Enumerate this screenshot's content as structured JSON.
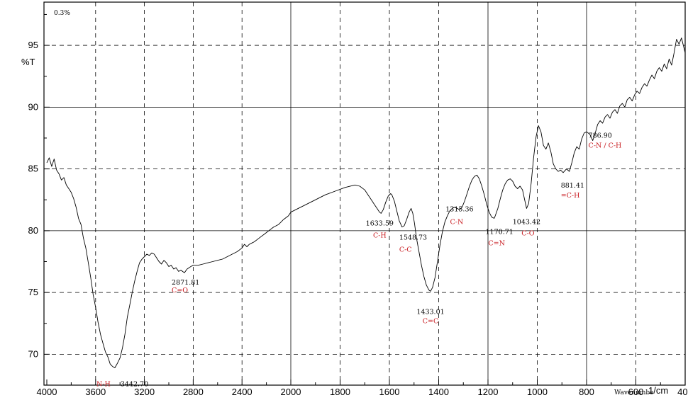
{
  "chart_data": {
    "type": "line",
    "title": "",
    "corner_note": "0.3%",
    "ylabel": "%T",
    "xlabel": "Wavenumbe",
    "x_unit": "1/cm",
    "xlim": [
      4000,
      400
    ],
    "ylim": [
      67.5,
      98.5
    ],
    "x_ticks": [
      4000,
      3600,
      3200,
      2800,
      2400,
      2000,
      1800,
      1600,
      1400,
      1200,
      1000,
      800,
      600,
      400
    ],
    "y_ticks": [
      70,
      75,
      80,
      85,
      90,
      95
    ],
    "x_tick_labels": [
      "4000",
      "3600",
      "3200",
      "2800",
      "2400",
      "2000",
      "1800",
      "1600",
      "1400",
      "1200",
      "1000",
      "800",
      "600",
      "400"
    ],
    "y_tick_labels": [
      "70",
      "75",
      "80",
      "85",
      "90",
      "95"
    ],
    "grid": true,
    "series": [
      {
        "x": [
          4000,
          3980,
          3960,
          3940,
          3920,
          3900,
          3880,
          3860,
          3840,
          3820,
          3800,
          3780,
          3760,
          3740,
          3720,
          3700,
          3680,
          3660,
          3640,
          3620,
          3600,
          3580,
          3560,
          3540,
          3520,
          3500,
          3480,
          3460,
          3442.7,
          3420,
          3400,
          3380,
          3360,
          3340,
          3320,
          3300,
          3280,
          3260,
          3240,
          3220,
          3200,
          3180,
          3160,
          3140,
          3120,
          3100,
          3080,
          3060,
          3040,
          3020,
          3000,
          2980,
          2960,
          2940,
          2920,
          2900,
          2871.81,
          2850,
          2820,
          2800,
          2760,
          2720,
          2680,
          2640,
          2600,
          2560,
          2520,
          2480,
          2440,
          2400,
          2380,
          2360,
          2340,
          2320,
          2300,
          2260,
          2220,
          2180,
          2140,
          2100,
          2060,
          2020,
          2000,
          1980,
          1940,
          1900,
          1860,
          1820,
          1780,
          1740,
          1720,
          1700,
          1690,
          1680,
          1670,
          1660,
          1650,
          1640,
          1633.59,
          1625,
          1615,
          1605,
          1595,
          1590,
          1580,
          1570,
          1560,
          1548.73,
          1540,
          1530,
          1520,
          1512,
          1505,
          1498,
          1490,
          1480,
          1470,
          1460,
          1450,
          1440,
          1433.01,
          1425,
          1415,
          1405,
          1395,
          1385,
          1375,
          1365,
          1355,
          1345,
          1335,
          1325,
          1315.36,
          1305,
          1295,
          1285,
          1275,
          1265,
          1255,
          1245,
          1235,
          1225,
          1215,
          1205,
          1195,
          1185,
          1175,
          1170.71,
          1160,
          1150,
          1140,
          1130,
          1120,
          1110,
          1100,
          1090,
          1080,
          1070,
          1060,
          1050,
          1043.42,
          1035,
          1025,
          1015,
          1005,
          995,
          985,
          975,
          965,
          955,
          945,
          935,
          925,
          915,
          905,
          895,
          881.41,
          870,
          860,
          850,
          840,
          830,
          820,
          810,
          800,
          786.9,
          775,
          765,
          755,
          745,
          735,
          725,
          715,
          705,
          695,
          685,
          675,
          665,
          655,
          645,
          635,
          625,
          615,
          605,
          595,
          585,
          575,
          565,
          555,
          545,
          535,
          525,
          515,
          505,
          495,
          485,
          475,
          465,
          455,
          445,
          435,
          425,
          415,
          405,
          400
        ],
        "y": [
          85.5,
          85.9,
          85.2,
          85.8,
          84.9,
          84.6,
          84.1,
          84.3,
          83.7,
          83.4,
          83.1,
          82.6,
          81.9,
          81.0,
          80.5,
          79.4,
          78.6,
          77.4,
          76.2,
          74.8,
          73.8,
          72.6,
          71.6,
          70.9,
          70.2,
          69.8,
          69.2,
          69.0,
          68.9,
          69.3,
          69.7,
          70.5,
          71.6,
          73.0,
          74.0,
          75.0,
          75.9,
          76.7,
          77.4,
          77.7,
          77.9,
          78.1,
          78.0,
          78.2,
          78.1,
          77.8,
          77.5,
          77.3,
          77.6,
          77.4,
          77.1,
          77.2,
          76.9,
          77.0,
          76.7,
          76.8,
          76.6,
          76.9,
          77.1,
          77.2,
          77.2,
          77.3,
          77.4,
          77.5,
          77.6,
          77.7,
          77.9,
          78.1,
          78.3,
          78.6,
          78.9,
          78.7,
          78.9,
          79.0,
          79.1,
          79.4,
          79.7,
          80.0,
          80.3,
          80.5,
          80.9,
          81.2,
          81.5,
          81.7,
          82.1,
          82.5,
          82.9,
          83.2,
          83.5,
          83.7,
          83.6,
          83.3,
          83.0,
          82.7,
          82.4,
          82.1,
          81.8,
          81.5,
          81.4,
          81.7,
          82.3,
          82.8,
          83.0,
          82.9,
          82.4,
          81.6,
          80.8,
          80.3,
          80.4,
          80.9,
          81.5,
          81.8,
          81.4,
          80.6,
          79.4,
          78.3,
          77.2,
          76.3,
          75.6,
          75.2,
          75.1,
          75.4,
          76.2,
          77.5,
          78.8,
          79.9,
          80.7,
          81.2,
          81.6,
          81.8,
          81.9,
          81.8,
          81.7,
          81.9,
          82.4,
          83.0,
          83.6,
          84.1,
          84.4,
          84.5,
          84.2,
          83.6,
          82.9,
          82.1,
          81.5,
          81.1,
          81.0,
          81.2,
          81.8,
          82.6,
          83.3,
          83.8,
          84.1,
          84.2,
          84.0,
          83.6,
          83.4,
          83.6,
          83.3,
          82.4,
          81.8,
          82.2,
          83.8,
          85.9,
          87.6,
          88.5,
          88.0,
          86.9,
          86.6,
          87.1,
          86.4,
          85.4,
          85.0,
          84.8,
          84.9,
          84.7,
          85.0,
          84.8,
          85.5,
          86.3,
          86.8,
          86.6,
          87.4,
          87.9,
          88.0,
          87.8,
          87.3,
          87.9,
          88.6,
          88.9,
          88.7,
          89.2,
          89.4,
          89.1,
          89.6,
          89.8,
          89.5,
          90.1,
          90.3,
          90.0,
          90.6,
          90.8,
          90.5,
          91.0,
          91.3,
          91.1,
          91.6,
          91.9,
          91.7,
          92.2,
          92.6,
          92.3,
          92.9,
          93.2,
          92.9,
          93.5,
          93.1,
          93.9,
          93.4,
          94.4,
          95.5,
          95.1,
          95.6,
          94.8,
          94.4
        ]
      }
    ],
    "annotations": [
      {
        "x": 3442.7,
        "y": 68.9,
        "value": "3442.70",
        "group": "N-H"
      },
      {
        "x": 2871.81,
        "y": 76.6,
        "value": "2871.81",
        "group": "C=O"
      },
      {
        "x": 1633.59,
        "y": 81.4,
        "value": "1633.59",
        "group": "C-H"
      },
      {
        "x": 1548.73,
        "y": 80.3,
        "value": "1548.73",
        "group": "C-C"
      },
      {
        "x": 1433.01,
        "y": 75.1,
        "value": "1433.01",
        "group": "C=C"
      },
      {
        "x": 1315.36,
        "y": 81.8,
        "value": "1315.36",
        "group": "C-N"
      },
      {
        "x": 1170.71,
        "y": 81.0,
        "value": "1170.71",
        "group": "C=N"
      },
      {
        "x": 1043.42,
        "y": 81.8,
        "value": "1043.42",
        "group": "C-O"
      },
      {
        "x": 881.41,
        "y": 84.7,
        "value": "881.41",
        "group": "=C-H"
      },
      {
        "x": 786.9,
        "y": 87.3,
        "value": "786.90",
        "group": "C-N / C-H"
      }
    ]
  }
}
